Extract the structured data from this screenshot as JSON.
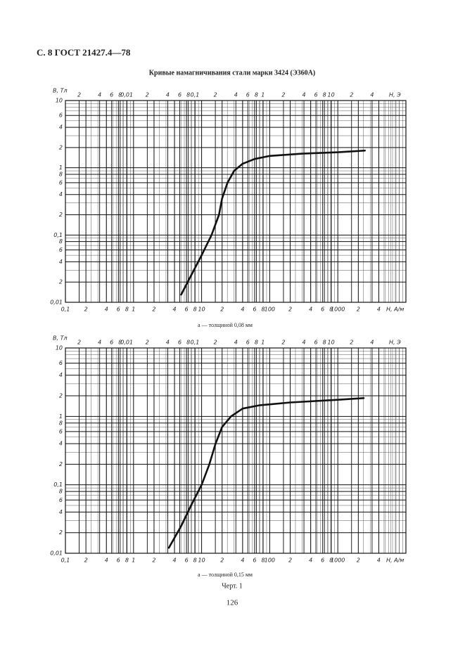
{
  "header": "С. 8 ГОСТ 21427.4—78",
  "title": "Кривые намагничивания стали марки 3424 (Э360А)",
  "chart_data": [
    {
      "type": "line",
      "xscale": "log",
      "yscale": "log",
      "grid": true,
      "minor_grid": true,
      "color": "#111111",
      "ylabel": "B, Тл",
      "xlabel": "H, А/м",
      "x2label": "H, Э",
      "caption": "а — толщиной 0,08 мм",
      "x": [
        5,
        7,
        10,
        14,
        18,
        20,
        24,
        30,
        40,
        60,
        100,
        300,
        1000,
        2500
      ],
      "values": [
        0.013,
        0.025,
        0.05,
        0.1,
        0.2,
        0.35,
        0.6,
        0.9,
        1.15,
        1.35,
        1.5,
        1.62,
        1.7,
        1.8
      ],
      "xlim": [
        0.1,
        10000
      ],
      "ylim": [
        0.01,
        10
      ],
      "x2lim": [
        0.0012566,
        125.66
      ],
      "xticks": [
        {
          "value": 0.1,
          "label": "0,1"
        },
        {
          "value": 0.2,
          "label": "2"
        },
        {
          "value": 0.4,
          "label": "4"
        },
        {
          "value": 0.6,
          "label": "6"
        },
        {
          "value": 0.8,
          "label": "8"
        },
        1,
        2,
        4,
        6,
        8,
        10,
        {
          "value": 20,
          "label": "2"
        },
        {
          "value": 40,
          "label": "4"
        },
        {
          "value": 60,
          "label": "6"
        },
        {
          "value": 80,
          "label": "8"
        },
        100,
        {
          "value": 200,
          "label": "2"
        },
        {
          "value": 400,
          "label": "4"
        },
        {
          "value": 600,
          "label": "6"
        },
        {
          "value": 800,
          "label": "8"
        },
        1000,
        {
          "value": 2000,
          "label": "2"
        },
        {
          "value": 4000,
          "label": "4"
        }
      ],
      "yticks": [
        {
          "value": 0.01,
          "label": "0,01"
        },
        {
          "value": 0.02,
          "label": "2"
        },
        {
          "value": 0.04,
          "label": "4"
        },
        {
          "value": 0.06,
          "label": "6"
        },
        {
          "value": 0.08,
          "label": "8"
        },
        {
          "value": 0.1,
          "label": "0,1"
        },
        {
          "value": 0.2,
          "label": "2"
        },
        {
          "value": 0.4,
          "label": "4"
        },
        {
          "value": 0.6,
          "label": "6"
        },
        {
          "value": 0.8,
          "label": "8"
        },
        1,
        2,
        4,
        6,
        10
      ],
      "x2ticks": [
        {
          "value": 0.002,
          "label": "2"
        },
        {
          "value": 0.004,
          "label": "4"
        },
        {
          "value": 0.006,
          "label": "6"
        },
        {
          "value": 0.008,
          "label": "8"
        },
        {
          "value": 0.01,
          "label": "0,01"
        },
        {
          "value": 0.02,
          "label": "2"
        },
        {
          "value": 0.04,
          "label": "4"
        },
        {
          "value": 0.06,
          "label": "6"
        },
        {
          "value": 0.08,
          "label": "8"
        },
        {
          "value": 0.1,
          "label": "0,1"
        },
        {
          "value": 0.2,
          "label": "2"
        },
        {
          "value": 0.4,
          "label": "4"
        },
        {
          "value": 0.6,
          "label": "6"
        },
        {
          "value": 0.8,
          "label": "8"
        },
        1,
        2,
        4,
        6,
        8,
        10,
        {
          "value": 20,
          "label": "2"
        },
        {
          "value": 40,
          "label": "4"
        }
      ]
    },
    {
      "type": "line",
      "xscale": "log",
      "yscale": "log",
      "grid": true,
      "minor_grid": true,
      "color": "#111111",
      "ylabel": "B, Тл",
      "xlabel": "H, А/м",
      "x2label": "H, Э",
      "caption": "а — толщиной 0,15 мм",
      "x": [
        3.3,
        5,
        7,
        10,
        13,
        16,
        20,
        27,
        40,
        70,
        200,
        1000,
        2400
      ],
      "values": [
        0.012,
        0.025,
        0.05,
        0.1,
        0.2,
        0.4,
        0.7,
        1.0,
        1.3,
        1.45,
        1.6,
        1.75,
        1.85
      ],
      "xlim": [
        0.1,
        10000
      ],
      "ylim": [
        0.01,
        10
      ],
      "x2lim": [
        0.0012566,
        125.66
      ],
      "xticks": [
        {
          "value": 0.1,
          "label": "0,1"
        },
        {
          "value": 0.2,
          "label": "2"
        },
        {
          "value": 0.4,
          "label": "4"
        },
        {
          "value": 0.6,
          "label": "6"
        },
        {
          "value": 0.8,
          "label": "8"
        },
        1,
        2,
        4,
        6,
        8,
        10,
        {
          "value": 20,
          "label": "2"
        },
        {
          "value": 40,
          "label": "4"
        },
        {
          "value": 60,
          "label": "6"
        },
        {
          "value": 80,
          "label": "8"
        },
        100,
        {
          "value": 200,
          "label": "2"
        },
        {
          "value": 400,
          "label": "4"
        },
        {
          "value": 600,
          "label": "6"
        },
        {
          "value": 800,
          "label": "8"
        },
        1000,
        {
          "value": 2000,
          "label": "2"
        },
        {
          "value": 4000,
          "label": "4"
        }
      ],
      "yticks": [
        {
          "value": 0.01,
          "label": "0,01"
        },
        {
          "value": 0.02,
          "label": "2"
        },
        {
          "value": 0.04,
          "label": "4"
        },
        {
          "value": 0.06,
          "label": "6"
        },
        {
          "value": 0.08,
          "label": "8"
        },
        {
          "value": 0.1,
          "label": "0,1"
        },
        {
          "value": 0.2,
          "label": "2"
        },
        {
          "value": 0.4,
          "label": "4"
        },
        {
          "value": 0.6,
          "label": "6"
        },
        {
          "value": 0.8,
          "label": "8"
        },
        1,
        2,
        4,
        6,
        10
      ],
      "x2ticks": [
        {
          "value": 0.002,
          "label": "2"
        },
        {
          "value": 0.004,
          "label": "4"
        },
        {
          "value": 0.006,
          "label": "6"
        },
        {
          "value": 0.008,
          "label": "8"
        },
        {
          "value": 0.01,
          "label": "0,01"
        },
        {
          "value": 0.02,
          "label": "2"
        },
        {
          "value": 0.04,
          "label": "4"
        },
        {
          "value": 0.06,
          "label": "6"
        },
        {
          "value": 0.08,
          "label": "8"
        },
        {
          "value": 0.1,
          "label": "0,1"
        },
        {
          "value": 0.2,
          "label": "2"
        },
        {
          "value": 0.4,
          "label": "4"
        },
        {
          "value": 0.6,
          "label": "6"
        },
        {
          "value": 0.8,
          "label": "8"
        },
        1,
        2,
        4,
        6,
        8,
        10,
        {
          "value": 20,
          "label": "2"
        },
        {
          "value": 40,
          "label": "4"
        }
      ]
    }
  ],
  "figure_caption": "Черт. 1",
  "page_number": "126"
}
